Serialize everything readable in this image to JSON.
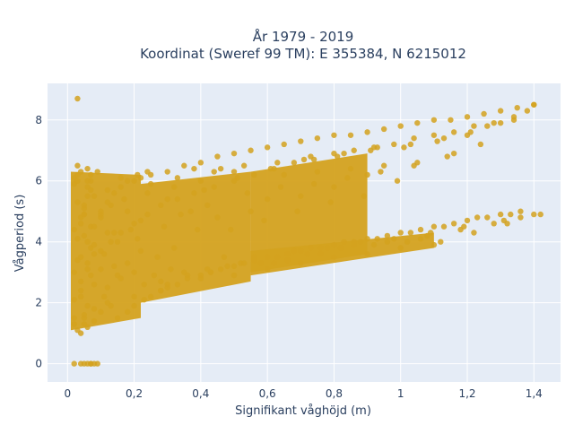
{
  "chart_data": {
    "type": "scatter",
    "title_line1": "År 1979 - 2019",
    "title_line2": "Koordinat (Sweref 99 TM): E 355384, N 6215012",
    "xlabel": "Signifikant våghöjd (m)",
    "ylabel": "Vågperiod (s)",
    "xlim": [
      -0.06,
      1.48
    ],
    "ylim": [
      -0.6,
      9.2
    ],
    "xticks": [
      {
        "v": 0,
        "label": "0"
      },
      {
        "v": 0.2,
        "label": "0,2"
      },
      {
        "v": 0.4,
        "label": "0,4"
      },
      {
        "v": 0.6,
        "label": "0,6"
      },
      {
        "v": 0.8,
        "label": "0,8"
      },
      {
        "v": 1.0,
        "label": "1"
      },
      {
        "v": 1.2,
        "label": "1,2"
      },
      {
        "v": 1.4,
        "label": "1,4"
      }
    ],
    "yticks": [
      {
        "v": 0,
        "label": "0"
      },
      {
        "v": 2,
        "label": "2"
      },
      {
        "v": 4,
        "label": "4"
      },
      {
        "v": 6,
        "label": "6"
      },
      {
        "v": 8,
        "label": "8"
      }
    ],
    "grid": true,
    "point_color": "#d4a21f",
    "plot_bg": "#e5ecf6",
    "series": [
      {
        "name": "",
        "x": [
          0.02,
          0.03,
          0.04,
          0.05,
          0.06,
          0.07,
          0.08,
          0.02,
          0.05,
          0.08,
          0.03,
          0.04,
          0.06,
          0.05,
          0.07,
          0.02,
          0.04,
          0.06,
          0.08,
          0.03,
          0.05,
          0.07,
          0.04,
          0.06,
          0.05,
          0.08,
          0.03,
          0.07,
          0.06,
          0.02,
          0.1,
          0.12,
          0.11,
          0.14,
          0.13,
          0.16,
          0.15,
          0.1,
          0.12,
          0.14,
          0.09,
          0.11,
          0.13,
          0.15,
          0.17,
          0.1,
          0.12,
          0.16,
          0.2,
          0.22,
          0.18,
          0.24,
          0.19,
          0.21,
          0.23,
          0.2,
          0.25,
          0.22,
          0.18,
          0.26,
          0.24,
          0.21,
          0.27,
          0.28,
          0.3,
          0.32,
          0.29,
          0.31,
          0.33,
          0.35,
          0.34,
          0.3,
          0.36,
          0.32,
          0.38,
          0.28,
          0.37,
          0.4,
          0.42,
          0.41,
          0.44,
          0.43,
          0.39,
          0.46,
          0.45,
          0.4,
          0.48,
          0.42,
          0.47,
          0.5,
          0.52,
          0.51,
          0.54,
          0.49,
          0.53,
          0.56,
          0.55,
          0.5,
          0.58,
          0.6,
          0.62,
          0.61,
          0.64,
          0.59,
          0.63,
          0.66,
          0.65,
          0.6,
          0.68,
          0.7,
          0.72,
          0.71,
          0.74,
          0.69,
          0.73,
          0.76,
          0.75,
          0.7,
          0.78,
          0.8,
          0.82,
          0.81,
          0.84,
          0.79,
          0.83,
          0.86,
          0.85,
          0.8,
          0.88,
          0.9,
          0.92,
          0.91,
          0.94,
          0.89,
          0.93,
          0.96,
          0.95,
          0.9,
          0.98,
          1.0,
          1.02,
          1.01,
          1.04,
          0.99,
          1.03,
          1.06,
          1.05,
          1.08,
          1.1,
          1.12,
          1.11,
          1.14,
          1.09,
          1.13,
          1.16,
          1.18,
          1.2,
          1.22,
          1.21,
          1.24,
          1.19,
          1.26,
          1.28,
          1.3,
          1.32,
          1.31,
          1.34,
          1.36,
          1.38,
          1.4,
          0.05,
          0.03,
          0.08,
          0.06,
          0.04,
          0.07,
          0.09,
          0.02,
          0.05,
          0.07,
          0.03,
          0.06,
          0.08,
          0.04,
          0.05,
          0.02,
          0.06,
          0.03,
          0.07,
          0.04,
          0.02,
          0.03,
          0.04,
          0.05,
          0.06,
          0.07,
          0.08,
          0.1,
          0.12,
          0.15,
          0.18,
          0.2,
          0.23,
          0.25,
          0.28,
          0.3,
          0.33,
          0.36,
          0.4,
          0.43,
          0.46,
          0.5,
          0.53,
          0.56,
          0.6,
          0.63,
          0.66,
          0.7,
          0.73,
          0.76,
          0.8,
          0.83,
          0.86,
          0.9,
          0.93,
          0.96,
          1.0,
          1.03,
          1.06,
          1.1,
          1.13,
          1.16,
          1.2,
          1.23,
          1.26,
          1.3,
          1.33,
          1.36,
          1.4,
          1.42,
          0.1,
          0.13,
          0.16,
          0.2,
          0.24,
          0.28,
          0.33,
          0.38,
          0.44,
          0.5,
          0.56,
          0.62,
          0.68,
          0.74,
          0.8,
          0.86,
          0.92,
          0.98,
          1.04,
          1.1,
          1.16,
          1.22,
          1.28,
          1.34,
          0.02,
          0.04,
          0.06,
          0.08,
          0.1,
          0.12,
          0.14,
          0.16,
          0.18,
          0.2,
          0.22,
          0.25,
          0.3,
          0.35,
          0.4,
          0.45,
          0.5,
          0.55,
          0.6,
          0.65,
          0.7,
          0.75,
          0.8,
          0.85,
          0.9,
          0.95,
          1.0,
          1.05,
          1.1,
          1.15,
          1.2,
          1.25,
          1.3,
          1.35,
          1.4
        ],
        "y": [
          2.1,
          3.4,
          4.8,
          1.6,
          5.5,
          2.9,
          3.9,
          5.9,
          4.2,
          1.8,
          6.2,
          2.4,
          3.1,
          5.1,
          4.5,
          1.3,
          2.7,
          6.0,
          3.6,
          4.1,
          1.5,
          5.7,
          2.2,
          3.3,
          4.9,
          2.6,
          5.3,
          3.8,
          1.9,
          4.4,
          1.7,
          2.5,
          3.6,
          4.3,
          5.2,
          6.1,
          2.9,
          4.8,
          5.7,
          3.2,
          6.3,
          2.2,
          1.9,
          4.0,
          5.4,
          3.1,
          2.0,
          2.8,
          2.2,
          3.7,
          5.0,
          5.6,
          4.4,
          6.2,
          2.6,
          3.0,
          5.9,
          4.7,
          3.3,
          2.9,
          6.3,
          4.1,
          3.5,
          2.4,
          2.6,
          5.8,
          4.5,
          3.1,
          6.1,
          3.0,
          4.9,
          5.4,
          2.9,
          3.8,
          6.4,
          2.7,
          5.0,
          2.8,
          3.1,
          5.7,
          6.3,
          3.0,
          4.4,
          6.4,
          4.8,
          6.0,
          3.2,
          5.2,
          3.5,
          2.9,
          3.3,
          6.1,
          5.6,
          4.4,
          6.5,
          3.5,
          5.0,
          6.3,
          3.3,
          3.1,
          3.3,
          6.4,
          5.8,
          4.7,
          6.6,
          3.4,
          6.2,
          5.4,
          3.7,
          3.3,
          3.6,
          6.7,
          5.9,
          5.0,
          6.8,
          3.6,
          6.3,
          5.5,
          3.8,
          3.5,
          3.8,
          6.8,
          6.1,
          5.3,
          6.9,
          3.9,
          6.4,
          5.8,
          4.0,
          3.6,
          3.9,
          7.0,
          6.3,
          5.5,
          7.1,
          4.0,
          6.5,
          6.2,
          4.1,
          3.8,
          4.0,
          7.1,
          6.5,
          6.0,
          7.2,
          4.1,
          6.6,
          4.2,
          3.9,
          4.0,
          7.3,
          6.8,
          4.3,
          7.4,
          6.9,
          4.4,
          7.5,
          4.3,
          7.6,
          7.2,
          4.5,
          7.8,
          4.6,
          7.9,
          4.6,
          4.7,
          8.1,
          4.8,
          8.3,
          8.5,
          4.9,
          8.7,
          0.0,
          0.0,
          0.0,
          0.0,
          0.0,
          0.0,
          0.0,
          0.0,
          1.1,
          1.2,
          1.4,
          1.0,
          1.3,
          1.5,
          6.4,
          6.5,
          6.2,
          6.3,
          6.1,
          6.0,
          4.6,
          5.2,
          5.8,
          6.0,
          5.5,
          4.9,
          4.3,
          1.5,
          1.7,
          1.9,
          2.1,
          2.2,
          2.4,
          2.5,
          2.6,
          2.8,
          2.9,
          3.0,
          3.1,
          3.2,
          3.3,
          3.4,
          3.5,
          3.5,
          3.6,
          3.7,
          3.8,
          3.8,
          3.9,
          4.0,
          4.0,
          4.1,
          4.1,
          4.2,
          4.3,
          4.3,
          4.4,
          4.5,
          4.5,
          4.6,
          4.7,
          4.8,
          4.8,
          4.9,
          4.9,
          5.0,
          4.9,
          4.9,
          3.7,
          4.0,
          4.3,
          4.6,
          4.9,
          5.2,
          5.4,
          5.6,
          5.8,
          6.0,
          6.2,
          6.4,
          6.6,
          6.7,
          6.9,
          7.0,
          7.1,
          7.2,
          7.4,
          7.5,
          7.6,
          7.8,
          7.9,
          8.0,
          3.0,
          3.5,
          4.0,
          4.5,
          5.0,
          5.3,
          5.6,
          5.8,
          6.0,
          6.0,
          6.1,
          6.2,
          6.3,
          6.5,
          6.6,
          6.8,
          6.9,
          7.0,
          7.1,
          7.2,
          7.3,
          7.4,
          7.5,
          7.5,
          7.6,
          7.7,
          7.8,
          7.9,
          8.0,
          8.0,
          8.1,
          8.2,
          8.3,
          8.4,
          8.5
        ]
      }
    ],
    "dense_bands": [
      {
        "x_from": 0.01,
        "x_to": 0.22,
        "y_low_from": 1.1,
        "y_low_to": 1.5,
        "y_high_from": 6.3,
        "y_high_to": 6.2
      },
      {
        "x_from": 0.22,
        "x_to": 0.55,
        "y_low_from": 2.0,
        "y_low_to": 2.7,
        "y_high_from": 5.9,
        "y_high_to": 6.3
      },
      {
        "x_from": 0.55,
        "x_to": 0.9,
        "y_low_from": 3.0,
        "y_low_to": 3.6,
        "y_high_from": 6.3,
        "y_high_to": 6.9
      },
      {
        "x_from": 0.55,
        "x_to": 1.1,
        "y_low_from": 2.9,
        "y_low_to": 3.8,
        "y_high_from": 3.7,
        "y_high_to": 4.3
      }
    ]
  }
}
